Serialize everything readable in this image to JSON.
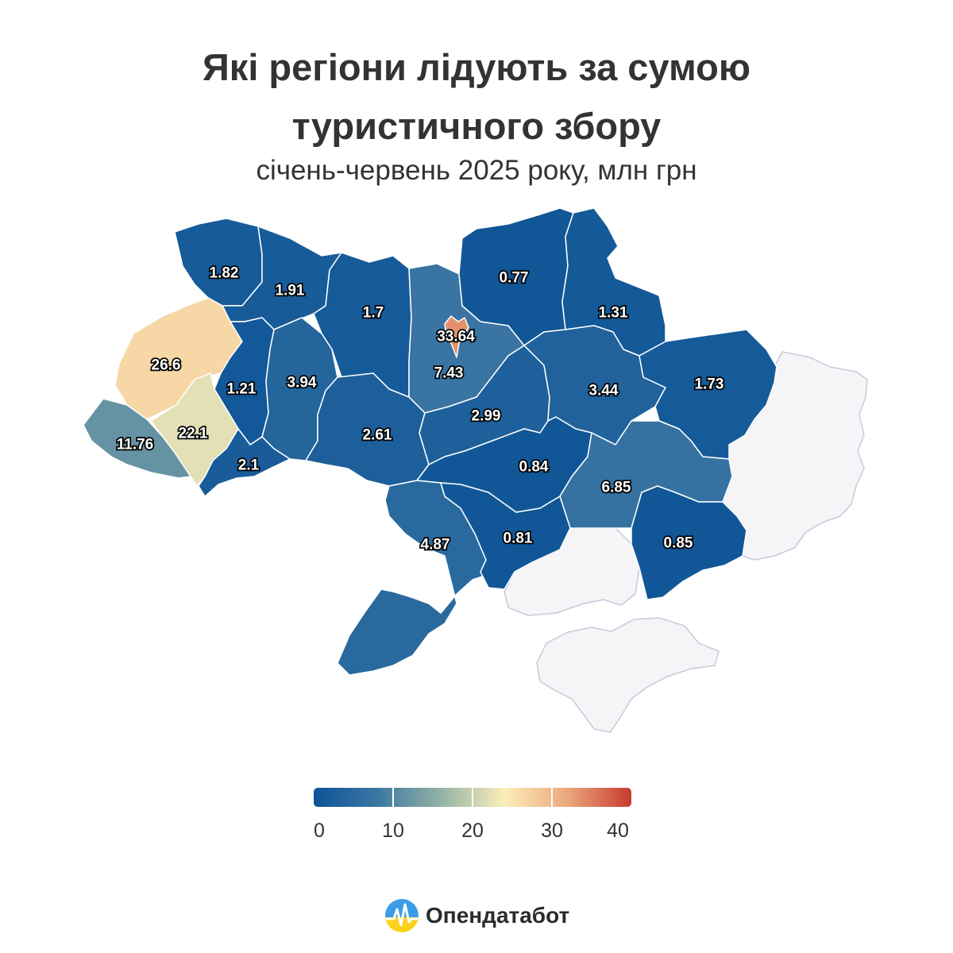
{
  "title": "Які регіони лідують за сумою туристичного збору",
  "subtitle": "січень-червень 2025 року, млн грн",
  "colorscale": {
    "min": 0,
    "max": 40,
    "colors": [
      "#0c5396",
      "#3c77a3",
      "#93b2a5",
      "#fbeeb9",
      "#eba77c",
      "#c63b2e"
    ],
    "ticks": [
      "0",
      "10",
      "20",
      "30",
      "40"
    ]
  },
  "no_data_color": "#f5f5f7",
  "chart_data": {
    "type": "choropleth",
    "title": "Які регіони лідують за сумою туристичного збору",
    "subtitle": "січень-червень 2025 року, млн грн",
    "range": [
      0,
      40
    ],
    "values": [
      {
        "label": "1.82",
        "value": 1.82
      },
      {
        "label": "1.91",
        "value": 1.91
      },
      {
        "label": "1.7",
        "value": 1.7
      },
      {
        "label": "7.43",
        "value": 7.43
      },
      {
        "label": "33.64",
        "value": 33.64
      },
      {
        "label": "0.77",
        "value": 0.77
      },
      {
        "label": "1.31",
        "value": 1.31
      },
      {
        "label": "26.6",
        "value": 26.6
      },
      {
        "label": "1.21",
        "value": 1.21
      },
      {
        "label": "3.94",
        "value": 3.94
      },
      {
        "label": "22.1",
        "value": 22.1
      },
      {
        "label": "11.76",
        "value": 11.76
      },
      {
        "label": "2.1",
        "value": 2.1
      },
      {
        "label": "2.61",
        "value": 2.61
      },
      {
        "label": "2.99",
        "value": 2.99
      },
      {
        "label": "3.44",
        "value": 3.44
      },
      {
        "label": "1.73",
        "value": 1.73
      },
      {
        "label": "0.84",
        "value": 0.84
      },
      {
        "label": "6.85",
        "value": 6.85
      },
      {
        "label": "4.87",
        "value": 4.87
      },
      {
        "label": "0.81",
        "value": 0.81
      },
      {
        "label": "0.85",
        "value": 0.85
      }
    ],
    "no_data_regions": 3
  },
  "logo": {
    "text": "Опендатабот",
    "icon": "opendatabot-logo-icon"
  }
}
